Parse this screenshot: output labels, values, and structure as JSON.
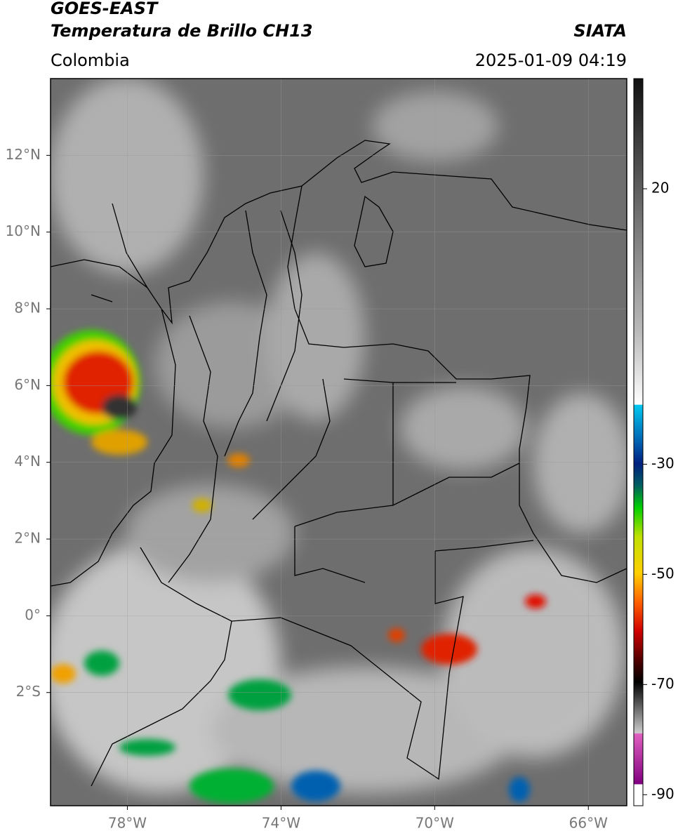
{
  "header": {
    "title": "GOES-EAST",
    "subtitle": "Temperatura de Brillo CH13",
    "source": "SIATA",
    "region": "Colombia",
    "datetime": "2025-01-09 04:19"
  },
  "map": {
    "lonlim": [
      -80,
      -65
    ],
    "latlim": [
      -4.95,
      14
    ],
    "lon_ticks": [
      {
        "value": -78,
        "label": "78°W"
      },
      {
        "value": -74,
        "label": "74°W"
      },
      {
        "value": -70,
        "label": "70°W"
      },
      {
        "value": -66,
        "label": "66°W"
      }
    ],
    "lat_ticks": [
      {
        "value": 12,
        "label": "12°N"
      },
      {
        "value": 10,
        "label": "10°N"
      },
      {
        "value": 8,
        "label": "8°N"
      },
      {
        "value": 6,
        "label": "6°N"
      },
      {
        "value": 4,
        "label": "4°N"
      },
      {
        "value": 2,
        "label": "2°N"
      },
      {
        "value": 0,
        "label": "0°"
      },
      {
        "value": -2,
        "label": "2°S"
      }
    ]
  },
  "colorbar": {
    "lim": [
      -92,
      40
    ],
    "ticks": [
      20,
      -30,
      -50,
      -70,
      -90
    ]
  }
}
